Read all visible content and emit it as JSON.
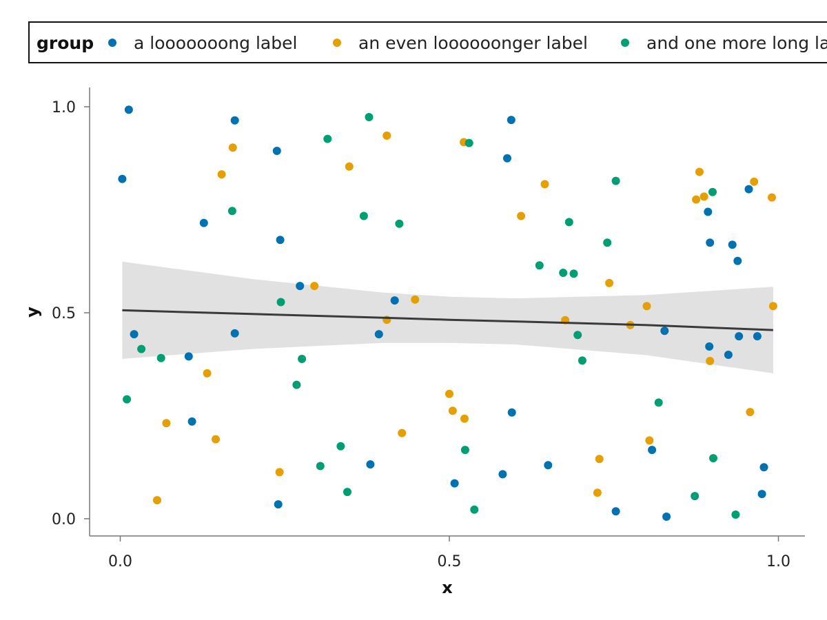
{
  "chart_data": {
    "type": "scatter",
    "xlabel": "x",
    "ylabel": "y",
    "xlim": [
      -0.05,
      1.045
    ],
    "ylim": [
      -0.042,
      1.045
    ],
    "x_ticks": [
      0.0,
      0.5,
      1.0
    ],
    "y_ticks": [
      0.0,
      0.5,
      1.0
    ],
    "x_tick_labels": [
      "0.0",
      "0.5",
      "1.0"
    ],
    "y_tick_labels": [
      "0.0",
      "0.5",
      "1.0"
    ],
    "grid": false,
    "legend": {
      "title": "group",
      "placement": "top"
    },
    "series": [
      {
        "name": "a looooooong label",
        "color": "#0072b2",
        "points": [
          [
            0.003,
            0.825
          ],
          [
            0.013,
            0.993
          ],
          [
            0.021,
            0.448
          ],
          [
            0.104,
            0.394
          ],
          [
            0.109,
            0.236
          ],
          [
            0.127,
            0.718
          ],
          [
            0.174,
            0.967
          ],
          [
            0.174,
            0.45
          ],
          [
            0.238,
            0.893
          ],
          [
            0.24,
            0.035
          ],
          [
            0.243,
            0.677
          ],
          [
            0.273,
            0.565
          ],
          [
            0.38,
            0.132
          ],
          [
            0.393,
            0.448
          ],
          [
            0.417,
            0.53
          ],
          [
            0.508,
            0.086
          ],
          [
            0.581,
            0.108
          ],
          [
            0.588,
            0.875
          ],
          [
            0.594,
            0.968
          ],
          [
            0.595,
            0.258
          ],
          [
            0.65,
            0.13
          ],
          [
            0.753,
            0.018
          ],
          [
            0.808,
            0.167
          ],
          [
            0.827,
            0.456
          ],
          [
            0.83,
            0.005
          ],
          [
            0.893,
            0.745
          ],
          [
            0.895,
            0.418
          ],
          [
            0.896,
            0.67
          ],
          [
            0.924,
            0.398
          ],
          [
            0.93,
            0.665
          ],
          [
            0.938,
            0.626
          ],
          [
            0.94,
            0.443
          ],
          [
            0.955,
            0.8
          ],
          [
            0.968,
            0.443
          ],
          [
            0.975,
            0.06
          ],
          [
            0.978,
            0.125
          ]
        ]
      },
      {
        "name": "an even loooooonger label",
        "color": "#e69f00",
        "points": [
          [
            0.056,
            0.045
          ],
          [
            0.07,
            0.232
          ],
          [
            0.132,
            0.353
          ],
          [
            0.145,
            0.193
          ],
          [
            0.154,
            0.836
          ],
          [
            0.171,
            0.901
          ],
          [
            0.242,
            0.113
          ],
          [
            0.295,
            0.565
          ],
          [
            0.348,
            0.855
          ],
          [
            0.405,
            0.483
          ],
          [
            0.405,
            0.93
          ],
          [
            0.428,
            0.208
          ],
          [
            0.448,
            0.532
          ],
          [
            0.5,
            0.303
          ],
          [
            0.505,
            0.262
          ],
          [
            0.522,
            0.914
          ],
          [
            0.523,
            0.243
          ],
          [
            0.609,
            0.735
          ],
          [
            0.645,
            0.812
          ],
          [
            0.676,
            0.482
          ],
          [
            0.725,
            0.063
          ],
          [
            0.728,
            0.145
          ],
          [
            0.743,
            0.572
          ],
          [
            0.775,
            0.47
          ],
          [
            0.8,
            0.516
          ],
          [
            0.804,
            0.19
          ],
          [
            0.875,
            0.775
          ],
          [
            0.88,
            0.842
          ],
          [
            0.887,
            0.782
          ],
          [
            0.896,
            0.383
          ],
          [
            0.957,
            0.259
          ],
          [
            0.963,
            0.818
          ],
          [
            0.99,
            0.78
          ],
          [
            0.992,
            0.516
          ]
        ]
      },
      {
        "name": "and one more long label",
        "color": "#009e73",
        "points": [
          [
            0.01,
            0.29
          ],
          [
            0.032,
            0.412
          ],
          [
            0.062,
            0.39
          ],
          [
            0.17,
            0.747
          ],
          [
            0.244,
            0.526
          ],
          [
            0.268,
            0.325
          ],
          [
            0.276,
            0.388
          ],
          [
            0.304,
            0.128
          ],
          [
            0.315,
            0.922
          ],
          [
            0.335,
            0.176
          ],
          [
            0.345,
            0.065
          ],
          [
            0.37,
            0.735
          ],
          [
            0.378,
            0.975
          ],
          [
            0.424,
            0.716
          ],
          [
            0.524,
            0.167
          ],
          [
            0.53,
            0.912
          ],
          [
            0.538,
            0.022
          ],
          [
            0.637,
            0.615
          ],
          [
            0.673,
            0.597
          ],
          [
            0.682,
            0.72
          ],
          [
            0.689,
            0.595
          ],
          [
            0.695,
            0.446
          ],
          [
            0.702,
            0.384
          ],
          [
            0.74,
            0.67
          ],
          [
            0.753,
            0.82
          ],
          [
            0.818,
            0.282
          ],
          [
            0.873,
            0.055
          ],
          [
            0.9,
            0.793
          ],
          [
            0.901,
            0.147
          ],
          [
            0.935,
            0.01
          ]
        ]
      }
    ],
    "trend": {
      "color": "#3a3a3a",
      "band_color": "#e1e1e1",
      "samples": [
        {
          "x": 0.003,
          "fit": 0.506,
          "lower": 0.388,
          "upper": 0.624
        },
        {
          "x": 0.2,
          "fit": 0.497,
          "lower": 0.412,
          "upper": 0.582
        },
        {
          "x": 0.4,
          "fit": 0.488,
          "lower": 0.427,
          "upper": 0.549
        },
        {
          "x": 0.5,
          "fit": 0.483,
          "lower": 0.427,
          "upper": 0.539
        },
        {
          "x": 0.6,
          "fit": 0.479,
          "lower": 0.423,
          "upper": 0.535
        },
        {
          "x": 0.8,
          "fit": 0.47,
          "lower": 0.397,
          "upper": 0.543
        },
        {
          "x": 0.992,
          "fit": 0.458,
          "lower": 0.353,
          "upper": 0.563
        }
      ]
    }
  }
}
